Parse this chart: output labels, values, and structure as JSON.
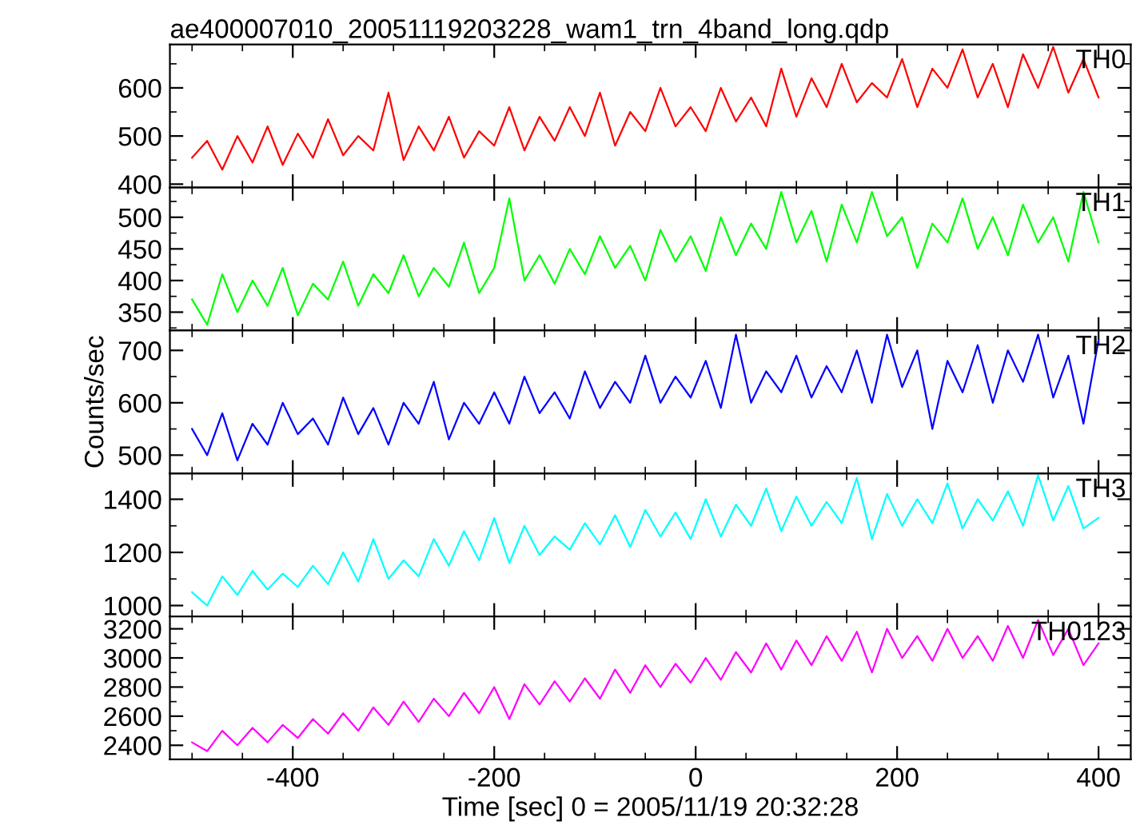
{
  "chart_data": [
    {
      "type": "line",
      "title": "ae400007010_20051119203228_wam1_trn_4band_long.qdp",
      "tick_labels": "y",
      "xlim": [
        -522,
        432
      ],
      "xticks": [
        -400,
        -200,
        0,
        200,
        400
      ],
      "ylim": [
        393,
        690
      ],
      "yticks": [
        400,
        500,
        600
      ],
      "x": [
        -500,
        -485,
        -470,
        -455,
        -440,
        -425,
        -410,
        -395,
        -380,
        -365,
        -350,
        -335,
        -320,
        -305,
        -290,
        -275,
        -260,
        -245,
        -230,
        -215,
        -200,
        -185,
        -170,
        -155,
        -140,
        -125,
        -110,
        -95,
        -80,
        -65,
        -50,
        -35,
        -20,
        -5,
        10,
        25,
        40,
        55,
        70,
        85,
        100,
        115,
        130,
        145,
        160,
        175,
        190,
        205,
        220,
        235,
        250,
        265,
        280,
        295,
        310,
        325,
        340,
        355,
        370,
        385,
        400
      ],
      "series": [
        {
          "name": "TH0",
          "color": "#ff0000",
          "values": [
            455,
            490,
            430,
            500,
            445,
            520,
            440,
            505,
            455,
            535,
            460,
            500,
            470,
            590,
            450,
            520,
            470,
            540,
            455,
            510,
            480,
            560,
            470,
            540,
            490,
            560,
            500,
            590,
            480,
            550,
            510,
            600,
            520,
            560,
            510,
            600,
            530,
            580,
            520,
            640,
            540,
            620,
            560,
            650,
            570,
            610,
            580,
            660,
            560,
            640,
            600,
            680,
            580,
            650,
            560,
            670,
            600,
            685,
            590,
            660,
            580
          ]
        }
      ]
    },
    {
      "type": "line",
      "tick_labels": "y",
      "xlim": [
        -522,
        432
      ],
      "xticks": [
        -400,
        -200,
        0,
        200,
        400
      ],
      "ylim": [
        321,
        547
      ],
      "yticks": [
        350,
        400,
        450,
        500
      ],
      "x": [
        -500,
        -485,
        -470,
        -455,
        -440,
        -425,
        -410,
        -395,
        -380,
        -365,
        -350,
        -335,
        -320,
        -305,
        -290,
        -275,
        -260,
        -245,
        -230,
        -215,
        -200,
        -185,
        -170,
        -155,
        -140,
        -125,
        -110,
        -95,
        -80,
        -65,
        -50,
        -35,
        -20,
        -5,
        10,
        25,
        40,
        55,
        70,
        85,
        100,
        115,
        130,
        145,
        160,
        175,
        190,
        205,
        220,
        235,
        250,
        265,
        280,
        295,
        310,
        325,
        340,
        355,
        370,
        385,
        400
      ],
      "series": [
        {
          "name": "TH1",
          "color": "#00ff00",
          "values": [
            370,
            330,
            410,
            350,
            400,
            360,
            420,
            345,
            395,
            370,
            430,
            360,
            410,
            380,
            440,
            375,
            420,
            390,
            460,
            380,
            420,
            530,
            400,
            440,
            395,
            450,
            410,
            470,
            420,
            455,
            400,
            480,
            430,
            470,
            415,
            500,
            440,
            490,
            450,
            540,
            460,
            510,
            430,
            520,
            460,
            540,
            470,
            500,
            420,
            490,
            460,
            530,
            450,
            500,
            440,
            520,
            460,
            500,
            430,
            540,
            460
          ]
        }
      ]
    },
    {
      "type": "line",
      "tick_labels": "y",
      "ylabel": "Counts/sec",
      "xlim": [
        -522,
        432
      ],
      "xticks": [
        -400,
        -200,
        0,
        200,
        400
      ],
      "ylim": [
        465,
        738
      ],
      "yticks": [
        500,
        600,
        700
      ],
      "x": [
        -500,
        -485,
        -470,
        -455,
        -440,
        -425,
        -410,
        -395,
        -380,
        -365,
        -350,
        -335,
        -320,
        -305,
        -290,
        -275,
        -260,
        -245,
        -230,
        -215,
        -200,
        -185,
        -170,
        -155,
        -140,
        -125,
        -110,
        -95,
        -80,
        -65,
        -50,
        -35,
        -20,
        -5,
        10,
        25,
        40,
        55,
        70,
        85,
        100,
        115,
        130,
        145,
        160,
        175,
        190,
        205,
        220,
        235,
        250,
        265,
        280,
        295,
        310,
        325,
        340,
        355,
        370,
        385,
        400
      ],
      "series": [
        {
          "name": "TH2",
          "color": "#0000ff",
          "values": [
            550,
            500,
            580,
            490,
            560,
            520,
            600,
            540,
            570,
            520,
            610,
            540,
            590,
            520,
            600,
            560,
            640,
            530,
            600,
            560,
            620,
            560,
            650,
            580,
            620,
            570,
            660,
            590,
            640,
            600,
            690,
            600,
            650,
            610,
            680,
            590,
            730,
            600,
            660,
            620,
            690,
            610,
            670,
            620,
            700,
            600,
            730,
            630,
            700,
            550,
            680,
            620,
            710,
            600,
            700,
            640,
            730,
            610,
            690,
            560,
            720
          ]
        }
      ]
    },
    {
      "type": "line",
      "tick_labels": "y",
      "xlim": [
        -522,
        432
      ],
      "xticks": [
        -400,
        -200,
        0,
        200,
        400
      ],
      "ylim": [
        959,
        1497
      ],
      "yticks": [
        1000,
        1200,
        1400
      ],
      "x": [
        -500,
        -485,
        -470,
        -455,
        -440,
        -425,
        -410,
        -395,
        -380,
        -365,
        -350,
        -335,
        -320,
        -305,
        -290,
        -275,
        -260,
        -245,
        -230,
        -215,
        -200,
        -185,
        -170,
        -155,
        -140,
        -125,
        -110,
        -95,
        -80,
        -65,
        -50,
        -35,
        -20,
        -5,
        10,
        25,
        40,
        55,
        70,
        85,
        100,
        115,
        130,
        145,
        160,
        175,
        190,
        205,
        220,
        235,
        250,
        265,
        280,
        295,
        310,
        325,
        340,
        355,
        370,
        385,
        400
      ],
      "series": [
        {
          "name": "TH3",
          "color": "#00ffff",
          "values": [
            1050,
            1000,
            1110,
            1040,
            1130,
            1060,
            1120,
            1070,
            1150,
            1080,
            1200,
            1090,
            1250,
            1100,
            1170,
            1110,
            1250,
            1150,
            1280,
            1170,
            1330,
            1160,
            1300,
            1190,
            1260,
            1210,
            1310,
            1230,
            1340,
            1220,
            1360,
            1260,
            1350,
            1250,
            1400,
            1260,
            1380,
            1300,
            1440,
            1280,
            1410,
            1300,
            1390,
            1310,
            1480,
            1250,
            1420,
            1300,
            1400,
            1310,
            1460,
            1290,
            1400,
            1320,
            1430,
            1300,
            1490,
            1320,
            1450,
            1290,
            1330
          ]
        }
      ]
    },
    {
      "type": "line",
      "xlabel": "Time [sec] 0 = 2005/11/19 20:32:28",
      "xlim": [
        -522,
        432
      ],
      "xticks": [
        -400,
        -200,
        0,
        200,
        400
      ],
      "ylim": [
        2303,
        3285
      ],
      "yticks": [
        2400,
        2600,
        2800,
        3000,
        3200
      ],
      "x": [
        -500,
        -485,
        -470,
        -455,
        -440,
        -425,
        -410,
        -395,
        -380,
        -365,
        -350,
        -335,
        -320,
        -305,
        -290,
        -275,
        -260,
        -245,
        -230,
        -215,
        -200,
        -185,
        -170,
        -155,
        -140,
        -125,
        -110,
        -95,
        -80,
        -65,
        -50,
        -35,
        -20,
        -5,
        10,
        25,
        40,
        55,
        70,
        85,
        100,
        115,
        130,
        145,
        160,
        175,
        190,
        205,
        220,
        235,
        250,
        265,
        280,
        295,
        310,
        325,
        340,
        355,
        370,
        385,
        400
      ],
      "series": [
        {
          "name": "TH0123",
          "color": "#ff00ff",
          "values": [
            2420,
            2360,
            2500,
            2400,
            2520,
            2420,
            2540,
            2450,
            2580,
            2480,
            2620,
            2500,
            2660,
            2540,
            2700,
            2560,
            2720,
            2600,
            2760,
            2620,
            2800,
            2580,
            2820,
            2680,
            2840,
            2700,
            2860,
            2720,
            2920,
            2760,
            2950,
            2800,
            2960,
            2830,
            3000,
            2850,
            3040,
            2900,
            3100,
            2920,
            3120,
            2950,
            3150,
            2980,
            3180,
            2900,
            3200,
            3000,
            3150,
            2980,
            3200,
            3000,
            3150,
            2980,
            3220,
            3000,
            3260,
            3020,
            3200,
            2950,
            3100
          ]
        }
      ]
    }
  ]
}
